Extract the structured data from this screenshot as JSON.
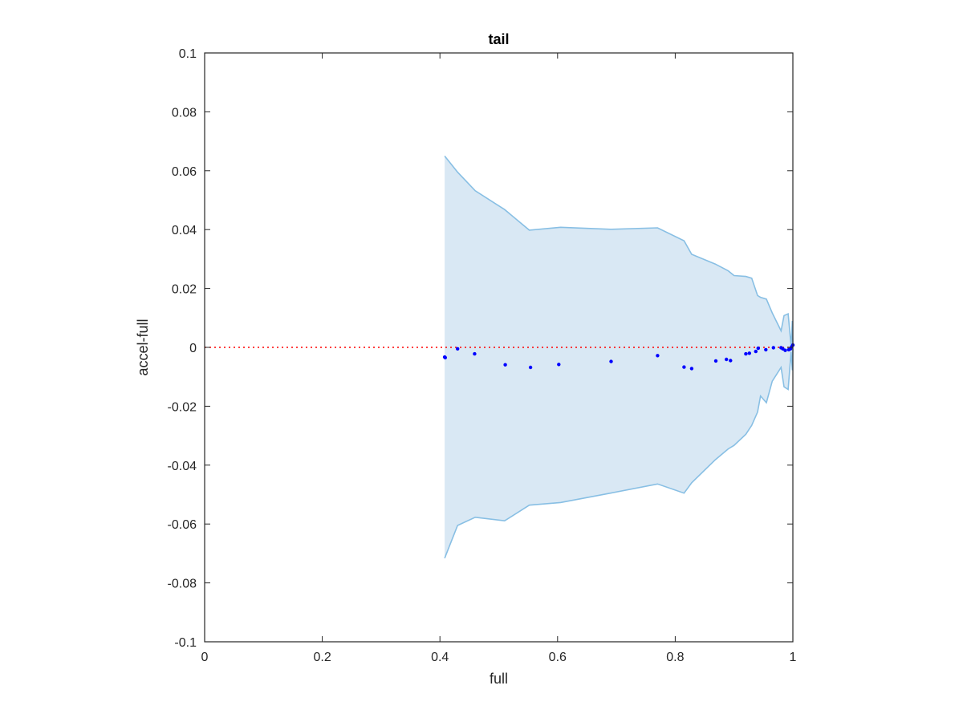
{
  "chart_data": {
    "type": "area",
    "title": "tail",
    "xlabel": "full",
    "ylabel": "accel-full",
    "xlim": [
      0,
      1
    ],
    "ylim": [
      -0.1,
      0.1
    ],
    "x_ticks": [
      "0",
      "0.2",
      "0.4",
      "0.6",
      "0.8",
      "1"
    ],
    "y_ticks": [
      "-0.1",
      "-0.08",
      "-0.06",
      "-0.04",
      "-0.02",
      "0",
      "0.02",
      "0.04",
      "0.06",
      "0.08",
      "0.1"
    ],
    "x_tick_values": [
      0,
      0.2,
      0.4,
      0.6,
      0.8,
      1
    ],
    "y_tick_values": [
      -0.1,
      -0.08,
      -0.06,
      -0.04,
      -0.02,
      0,
      0.02,
      0.04,
      0.06,
      0.08,
      0.1
    ],
    "reference_line": {
      "y": 0,
      "color": "#ff0000",
      "style": "dotted"
    },
    "band": {
      "fill": "#d9e8f4",
      "stroke": "#88bfe4",
      "upper": [
        [
          0.408,
          0.065
        ],
        [
          0.43,
          0.0595
        ],
        [
          0.46,
          0.0532
        ],
        [
          0.51,
          0.0468
        ],
        [
          0.552,
          0.0398
        ],
        [
          0.605,
          0.0408
        ],
        [
          0.69,
          0.0401
        ],
        [
          0.77,
          0.0406
        ],
        [
          0.815,
          0.0362
        ],
        [
          0.828,
          0.0316
        ],
        [
          0.868,
          0.0283
        ],
        [
          0.89,
          0.026
        ],
        [
          0.9,
          0.0244
        ],
        [
          0.92,
          0.0241
        ],
        [
          0.93,
          0.0235
        ],
        [
          0.94,
          0.0176
        ],
        [
          0.945,
          0.017
        ],
        [
          0.955,
          0.0164
        ],
        [
          0.965,
          0.0117
        ],
        [
          0.98,
          0.0056
        ],
        [
          0.985,
          0.0108
        ],
        [
          0.992,
          0.0114
        ],
        [
          0.997,
          0.0005
        ],
        [
          0.999,
          0.009
        ],
        [
          1.0,
          0.0005
        ]
      ],
      "lower": [
        [
          0.408,
          -0.0716
        ],
        [
          0.43,
          -0.0605
        ],
        [
          0.46,
          -0.0577
        ],
        [
          0.51,
          -0.0589
        ],
        [
          0.552,
          -0.0536
        ],
        [
          0.605,
          -0.0527
        ],
        [
          0.69,
          -0.0495
        ],
        [
          0.77,
          -0.0464
        ],
        [
          0.815,
          -0.0495
        ],
        [
          0.828,
          -0.046
        ],
        [
          0.868,
          -0.0382
        ],
        [
          0.89,
          -0.0345
        ],
        [
          0.9,
          -0.0333
        ],
        [
          0.92,
          -0.0295
        ],
        [
          0.93,
          -0.0265
        ],
        [
          0.94,
          -0.022
        ],
        [
          0.945,
          -0.0165
        ],
        [
          0.955,
          -0.0188
        ],
        [
          0.965,
          -0.0115
        ],
        [
          0.98,
          -0.0068
        ],
        [
          0.985,
          -0.0134
        ],
        [
          0.992,
          -0.0143
        ],
        [
          0.997,
          -0.0015
        ],
        [
          0.999,
          -0.0078
        ],
        [
          1.0,
          -0.0005
        ]
      ]
    },
    "series": [
      {
        "color": "#0000ff",
        "points": [
          [
            0.408,
            -0.0033
          ],
          [
            0.409,
            -0.0035
          ],
          [
            0.43,
            -0.0005
          ],
          [
            0.459,
            -0.0022
          ],
          [
            0.511,
            -0.0059
          ],
          [
            0.554,
            -0.0068
          ],
          [
            0.602,
            -0.0058
          ],
          [
            0.691,
            -0.0048
          ],
          [
            0.77,
            -0.0028
          ],
          [
            0.815,
            -0.0067
          ],
          [
            0.828,
            -0.0072
          ],
          [
            0.869,
            -0.0046
          ],
          [
            0.887,
            -0.0041
          ],
          [
            0.894,
            -0.0045
          ],
          [
            0.92,
            -0.0022
          ],
          [
            0.926,
            -0.002
          ],
          [
            0.937,
            -0.0014
          ],
          [
            0.941,
            -0.0003
          ],
          [
            0.954,
            -0.0008
          ],
          [
            0.967,
            -0.0001
          ],
          [
            0.98,
            -0.0001
          ],
          [
            0.983,
            -0.0005
          ],
          [
            0.987,
            -0.001
          ],
          [
            0.993,
            -0.0008
          ],
          [
            0.996,
            -0.0005
          ],
          [
            0.998,
            0.0002
          ],
          [
            1.0,
            0.0008
          ]
        ]
      }
    ]
  }
}
